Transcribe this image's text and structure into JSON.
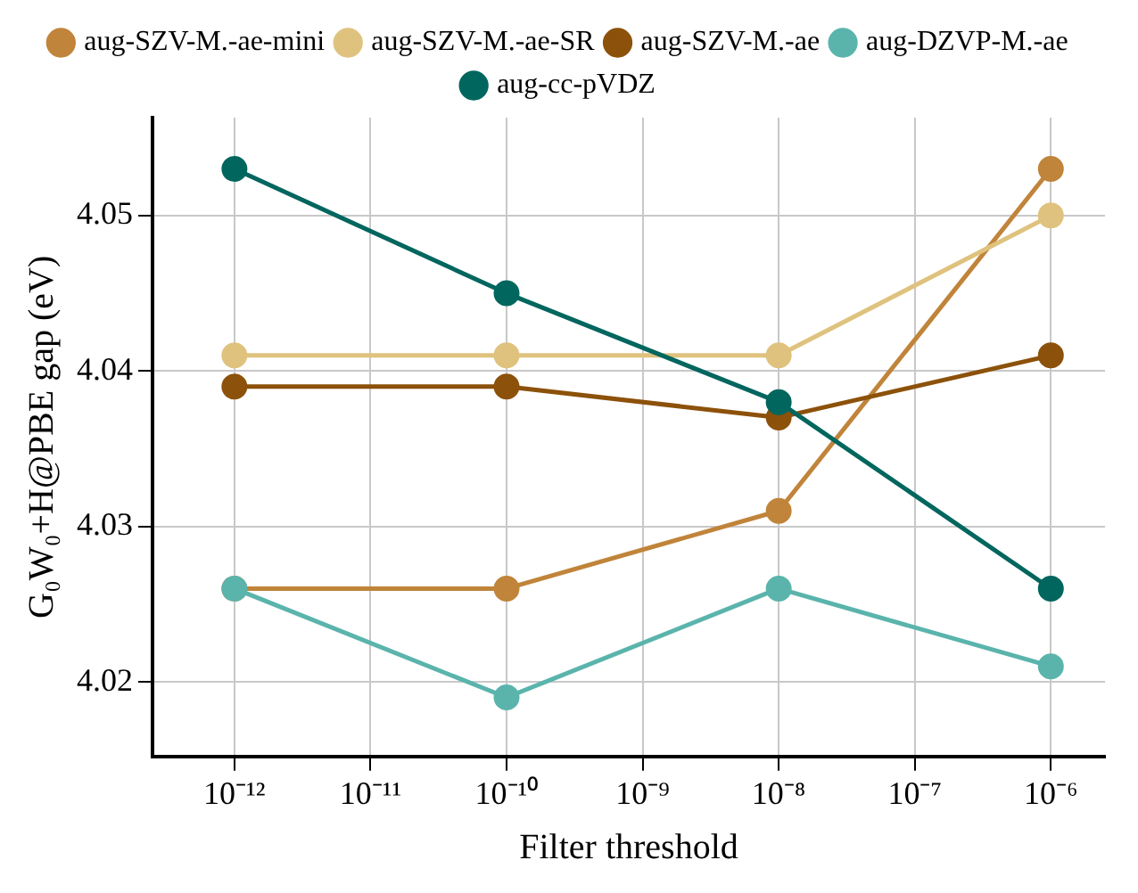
{
  "chart_data": {
    "type": "line",
    "xlabel": "Filter threshold",
    "ylabel": "G₀W₀+H@PBE gap (eV)",
    "log": "x",
    "grid": true,
    "legend": "top",
    "marker": "circle",
    "line_style": "solid",
    "x": [
      1e-12,
      1e-10,
      1e-08,
      1e-06
    ],
    "xlim": [
      2.5e-13,
      2.5e-06
    ],
    "xticks": [
      {
        "value": 1e-12,
        "label": "10⁻¹²"
      },
      {
        "value": 1e-11,
        "label": "10⁻¹¹"
      },
      {
        "value": 1e-10,
        "label": "10⁻¹⁰"
      },
      {
        "value": 1e-09,
        "label": "10⁻⁹"
      },
      {
        "value": 1e-08,
        "label": "10⁻⁸"
      },
      {
        "value": 1e-07,
        "label": "10⁻⁷"
      },
      {
        "value": 1e-06,
        "label": "10⁻⁶"
      }
    ],
    "ylim": [
      4.0152,
      4.0563
    ],
    "yticks": [
      4.02,
      4.03,
      4.04,
      4.05
    ],
    "series": [
      {
        "name": "aug-SZV-M.-ae-mini",
        "color": "#c0843a",
        "values": [
          4.026,
          4.026,
          4.031,
          4.053
        ]
      },
      {
        "name": "aug-SZV-M.-ae-SR",
        "color": "#dfc27d",
        "values": [
          4.041,
          4.041,
          4.041,
          4.05
        ]
      },
      {
        "name": "aug-SZV-M.-ae",
        "color": "#8c510a",
        "values": [
          4.039,
          4.039,
          4.037,
          4.041
        ]
      },
      {
        "name": "aug-DZVP-M.-ae",
        "color": "#5ab4ac",
        "values": [
          4.026,
          4.019,
          4.026,
          4.021
        ]
      },
      {
        "name": "aug-cc-pVDZ",
        "color": "#01665e",
        "values": [
          4.053,
          4.045,
          4.038,
          4.026
        ]
      }
    ]
  }
}
